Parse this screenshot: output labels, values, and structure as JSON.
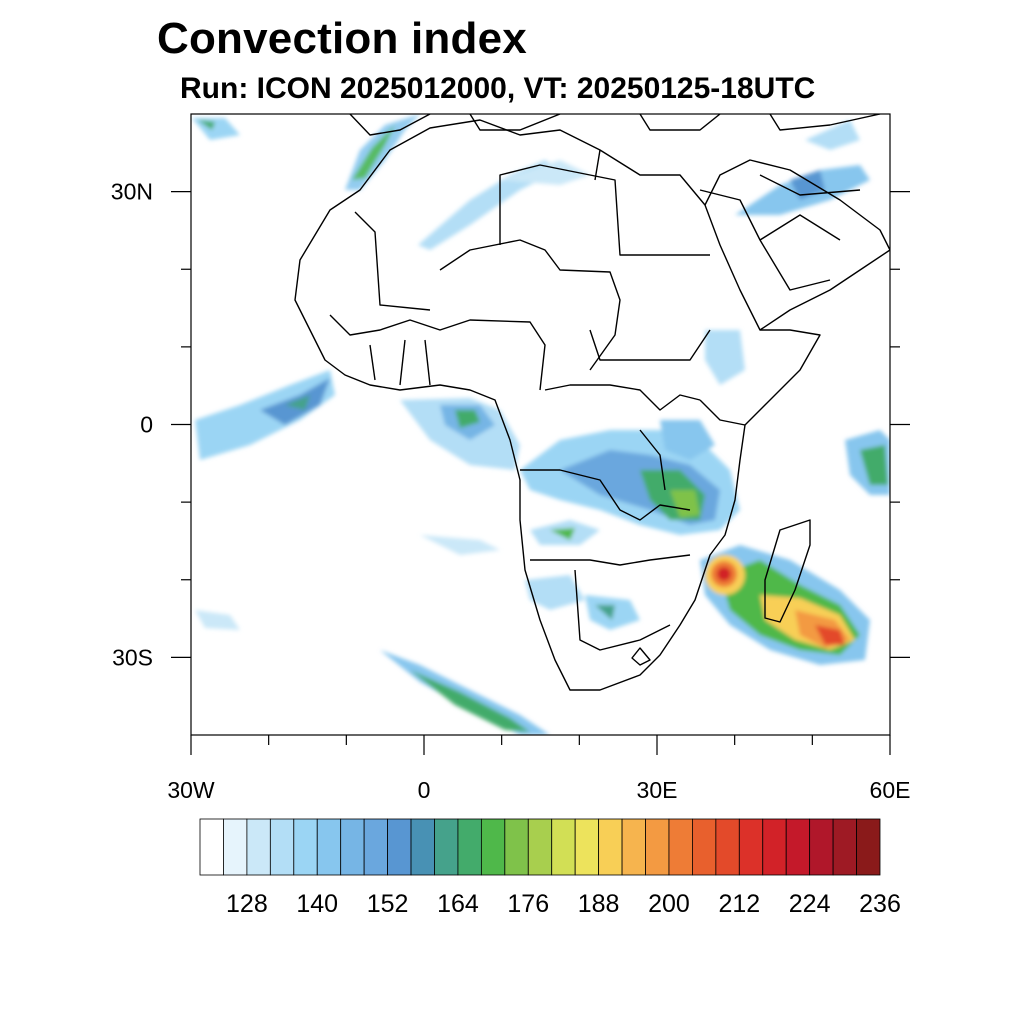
{
  "header": {
    "title": "Convection index",
    "subtitle": "Run: ICON 2025012000,  VT: 20250125-18UTC"
  },
  "map": {
    "lon_range": [
      -30,
      60
    ],
    "lat_range": [
      -40,
      40
    ],
    "x_ticks": [
      {
        "lon": -30,
        "label": "30W"
      },
      {
        "lon": 0,
        "label": "0"
      },
      {
        "lon": 30,
        "label": "30E"
      },
      {
        "lon": 60,
        "label": "60E"
      }
    ],
    "y_ticks": [
      {
        "lat": 30,
        "label": "30N"
      },
      {
        "lat": 0,
        "label": "0"
      },
      {
        "lat": -30,
        "label": "30S"
      }
    ],
    "minor_lon_ticks": [
      -20,
      -10,
      10,
      20,
      40,
      50
    ],
    "minor_lat_ticks": [
      20,
      10,
      -10,
      -20
    ]
  },
  "colorbar": {
    "colors": [
      "#ffffff",
      "#e6f4fc",
      "#cbe8f8",
      "#b3def6",
      "#9bd5f4",
      "#87c6ee",
      "#76b5e5",
      "#6aa7de",
      "#5896d2",
      "#4891b4",
      "#45a28b",
      "#43ab6b",
      "#4fb84a",
      "#7fc24a",
      "#a8cf4e",
      "#d2df55",
      "#ede35c",
      "#f8cf56",
      "#f6b44e",
      "#f39a42",
      "#ee7c36",
      "#e8602d",
      "#e34a2a",
      "#dc3129",
      "#d22228",
      "#c4192a",
      "#b0172a",
      "#9e1a24",
      "#8a1a1a"
    ],
    "labels": [
      "128",
      "140",
      "152",
      "164",
      "176",
      "188",
      "200",
      "212",
      "224",
      "236"
    ]
  }
}
